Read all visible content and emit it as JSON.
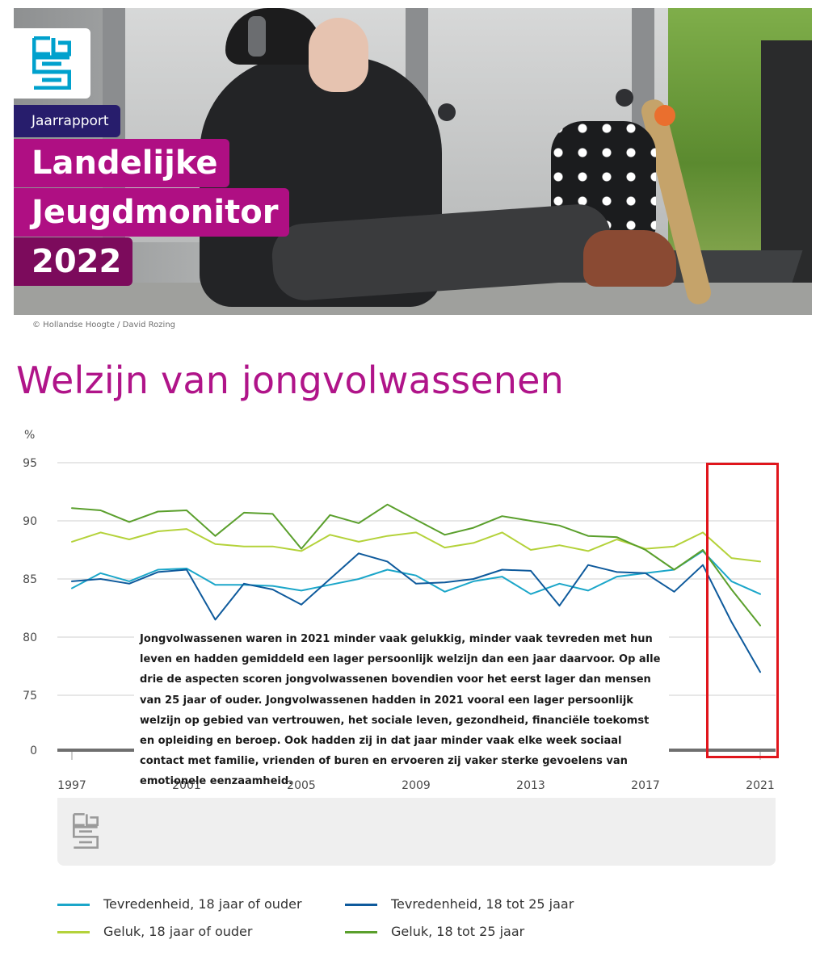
{
  "hero": {
    "report_label": "Jaarrapport",
    "title_lines": [
      "Landelijke",
      "Jeugdmonitor",
      "2022"
    ],
    "photo_credit": "© Hollandse Hoogte / David Rozing"
  },
  "section_title": "Welzijn van jongvolwassenen",
  "chart_note": "Jongvolwassenen waren in 2021 minder vaak gelukkig, minder vaak tevreden met hun leven en hadden gemiddeld een lager persoonlijk welzijn dan een jaar daarvoor. Op alle drie de aspecten scoren jongvolwassenen bovendien voor het eerst lager dan mensen van 25 jaar of ouder. Jongvolwassenen hadden in 2021 vooral een lager persoonlijk welzijn op gebied van vertrouwen, het sociale leven, gezondheid, financiële toekomst en opleiding en beroep. Ook hadden zij in dat jaar minder vaak elke week sociaal contact met familie, vrienden of buren en ervoeren zij vaker sterke gevoelens van emotionele eenzaamheid.",
  "colors": {
    "brand_magenta": "#af0f83",
    "brand_navy": "#271d6c",
    "highlight_red": "#e0151c",
    "logo_teal": "#00a1cd"
  },
  "chart_data": {
    "type": "line",
    "ylabel": "%",
    "y_ticks": [
      "95",
      "90",
      "85",
      "80",
      "75",
      "0"
    ],
    "y_tick_values": [
      95,
      90,
      85,
      80,
      75,
      0
    ],
    "axis_break": "between 75 and 0",
    "x_tick_labels": [
      "1997",
      "2001",
      "2005",
      "2009",
      "2013",
      "2017",
      "2021"
    ],
    "grid": true,
    "legend_position": "bottom",
    "highlight": "red box around 2019-2021",
    "x": [
      1997,
      1998,
      1999,
      2000,
      2001,
      2002,
      2003,
      2004,
      2005,
      2006,
      2007,
      2008,
      2009,
      2010,
      2011,
      2012,
      2013,
      2014,
      2015,
      2016,
      2017,
      2018,
      2019,
      2020,
      2021
    ],
    "series": [
      {
        "name": "Tevredenheid, 18 jaar of ouder",
        "color": "#1ba6c9",
        "values": [
          84.2,
          85.5,
          84.8,
          85.8,
          85.9,
          84.5,
          84.5,
          84.4,
          84.0,
          84.5,
          85.0,
          85.8,
          85.3,
          83.9,
          84.8,
          85.2,
          83.7,
          84.6,
          84.0,
          85.2,
          85.5,
          85.8,
          87.4,
          84.8,
          83.7
        ]
      },
      {
        "name": "Tevredenheid, 18 tot 25 jaar",
        "color": "#0e5a9c",
        "values": [
          84.8,
          85.0,
          84.6,
          85.6,
          85.8,
          81.5,
          84.6,
          84.1,
          82.8,
          85.0,
          87.2,
          86.5,
          84.6,
          84.7,
          85.0,
          85.8,
          85.7,
          82.7,
          86.2,
          85.6,
          85.5,
          83.9,
          86.2,
          81.3,
          77.0
        ]
      },
      {
        "name": "Geluk, 18 jaar of ouder",
        "color": "#b4d23a",
        "values": [
          88.2,
          89.0,
          88.4,
          89.1,
          89.3,
          88.0,
          87.8,
          87.8,
          87.4,
          88.8,
          88.2,
          88.7,
          89.0,
          87.7,
          88.1,
          89.0,
          87.5,
          87.9,
          87.4,
          88.4,
          87.6,
          87.8,
          89.0,
          86.8,
          86.5
        ]
      },
      {
        "name": "Geluk, 18 tot 25 jaar",
        "color": "#5a9f2c",
        "values": [
          91.1,
          90.9,
          89.9,
          90.8,
          90.9,
          88.7,
          90.7,
          90.6,
          87.6,
          90.5,
          89.8,
          91.4,
          90.1,
          88.8,
          89.4,
          90.4,
          90.0,
          89.6,
          88.7,
          88.6,
          87.5,
          85.8,
          87.5,
          84.1,
          81.0
        ]
      }
    ]
  }
}
